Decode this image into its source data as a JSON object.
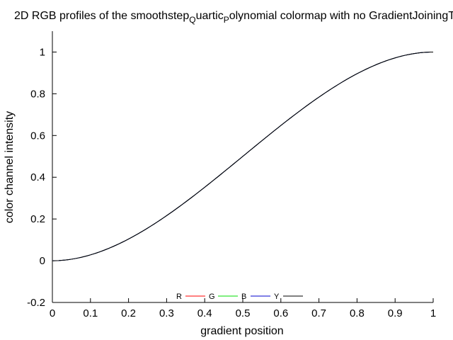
{
  "chart_data": {
    "type": "line",
    "title": {
      "prefix": "2D RGB profiles of the smoothstep",
      "sub1": "Q",
      "mid": "uartic",
      "sub2": "P",
      "suffix": "olynomial colormap with no GradientJoiningT"
    },
    "xlabel": "gradient position",
    "ylabel": "color channel intensity",
    "xlim": [
      0,
      1
    ],
    "ylim": [
      -0.2,
      1.1
    ],
    "x_ticks": [
      0,
      0.1,
      0.2,
      0.3,
      0.4,
      0.5,
      0.6,
      0.7,
      0.8,
      0.9,
      1
    ],
    "x_tick_labels": [
      "0",
      "0.1",
      "0.2",
      "0.3",
      "0.4",
      "0.5",
      "0.6",
      "0.7",
      "0.8",
      "0.9",
      "1"
    ],
    "y_ticks": [
      -0.2,
      0,
      0.2,
      0.4,
      0.6,
      0.8,
      1
    ],
    "y_tick_labels": [
      "-0.2",
      "0",
      "0.2",
      "0.4",
      "0.6",
      "0.8",
      "1"
    ],
    "grid": false,
    "legend_position": "bottom-center",
    "series": [
      {
        "name": "R",
        "color": "#ff0000",
        "x": [
          0,
          0.1,
          0.2,
          0.3,
          0.4,
          0.5,
          0.6,
          0.7,
          0.8,
          0.9,
          1
        ],
        "y": [
          0,
          0.028,
          0.104,
          0.216,
          0.352,
          0.5,
          0.648,
          0.784,
          0.896,
          0.972,
          1
        ]
      },
      {
        "name": "G",
        "color": "#00dd00",
        "x": [
          0,
          0.1,
          0.2,
          0.3,
          0.4,
          0.5,
          0.6,
          0.7,
          0.8,
          0.9,
          1
        ],
        "y": [
          0,
          0.028,
          0.104,
          0.216,
          0.352,
          0.5,
          0.648,
          0.784,
          0.896,
          0.972,
          1
        ]
      },
      {
        "name": "B",
        "color": "#0000cc",
        "x": [
          0,
          0.1,
          0.2,
          0.3,
          0.4,
          0.5,
          0.6,
          0.7,
          0.8,
          0.9,
          1
        ],
        "y": [
          0,
          0.028,
          0.104,
          0.216,
          0.352,
          0.5,
          0.648,
          0.784,
          0.896,
          0.972,
          1
        ]
      },
      {
        "name": "Y",
        "color": "#000000",
        "x": [
          0,
          0.1,
          0.2,
          0.3,
          0.4,
          0.5,
          0.6,
          0.7,
          0.8,
          0.9,
          1
        ],
        "y": [
          0,
          0.028,
          0.104,
          0.216,
          0.352,
          0.5,
          0.648,
          0.784,
          0.896,
          0.972,
          1
        ]
      }
    ]
  }
}
